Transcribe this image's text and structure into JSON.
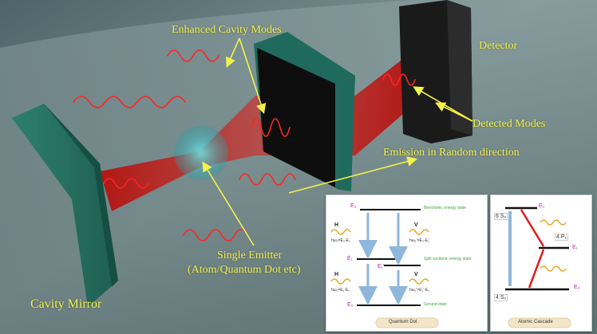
{
  "labels": {
    "enhanced_cavity_modes": "Enhanced Cavity Modes",
    "detector": "Detector",
    "detected_modes": "Detected Modes",
    "emission_random": "Emission in Random direction",
    "single_emitter_line1": "Single Emitter",
    "single_emitter_line2": "(Atom/Quantum Dot etc)",
    "cavity_mirror": "Cavity Mirror"
  },
  "quantum_dot_panel": {
    "title": "Quantum Dot",
    "levels": {
      "e2": "E₂",
      "e1": "E₁",
      "e1_prime": "E₁'",
      "e0": "E₀"
    },
    "states": {
      "biexcitonic": "Biexcitonic energy state",
      "split_excitonic": "Split excitonic energy state",
      "ground": "Ground state"
    },
    "photons": {
      "h_top": "H",
      "h_top_eq": "hω₂=E₂-E₁",
      "v_top": "V",
      "v_top_eq": "hω₂'=E₂-E₁'",
      "h_bottom": "H",
      "h_bottom_eq": "hω₁=E₁-E₀",
      "v_bottom": "V",
      "v_bottom_eq": "hω₁'=E₁'-E₀"
    }
  },
  "atomic_cascade_panel": {
    "title": "Atomic Cascade",
    "levels": {
      "e2": "E₂",
      "e1": "E₁",
      "e0": "E₀"
    },
    "states": {
      "top": "6 S₀",
      "mid": "4 P₁",
      "bottom": "4 S₀"
    }
  },
  "colors": {
    "label_yellow": "#f4f14a",
    "beam_red": "#e01b1b",
    "mirror_green": "#2f8f7c",
    "level_magenta": "#c0249e",
    "state_green": "#3aa63a",
    "photon_orange": "#e8a21c"
  }
}
